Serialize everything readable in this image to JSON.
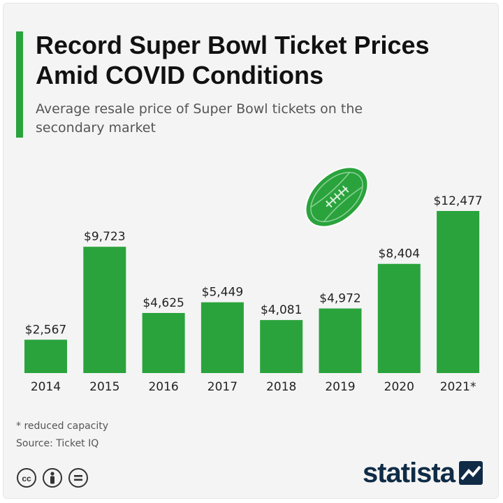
{
  "title": "Record Super Bowl Ticket Prices Amid COVID Conditions",
  "subtitle": "Average resale price of Super Bowl tickets on the secondary market",
  "footnote": "* reduced capacity",
  "source": "Source: Ticket IQ",
  "brand": "statista",
  "icons": [
    "football-icon",
    "cc-license-icon",
    "attribution-icon",
    "no-derivatives-icon",
    "statista-logo-icon"
  ],
  "colors": {
    "bar": "#2aa33c",
    "accent": "#2aa33c",
    "brand": "#0f2b46",
    "text": "#111111"
  },
  "chart_data": {
    "type": "bar",
    "title": "Record Super Bowl Ticket Prices Amid COVID Conditions",
    "subtitle": "Average resale price of Super Bowl tickets on the secondary market",
    "categories": [
      "2014",
      "2015",
      "2016",
      "2017",
      "2018",
      "2019",
      "2020",
      "2021*"
    ],
    "values": [
      2567,
      9723,
      4625,
      5449,
      4081,
      4972,
      8404,
      12477
    ],
    "value_labels": [
      "$2,567",
      "$9,723",
      "$4,625",
      "$5,449",
      "$4,081",
      "$4,972",
      "$8,404",
      "$12,477"
    ],
    "xlabel": "",
    "ylabel": "",
    "ylim": [
      0,
      12477
    ],
    "grid": false,
    "legend": "none"
  }
}
